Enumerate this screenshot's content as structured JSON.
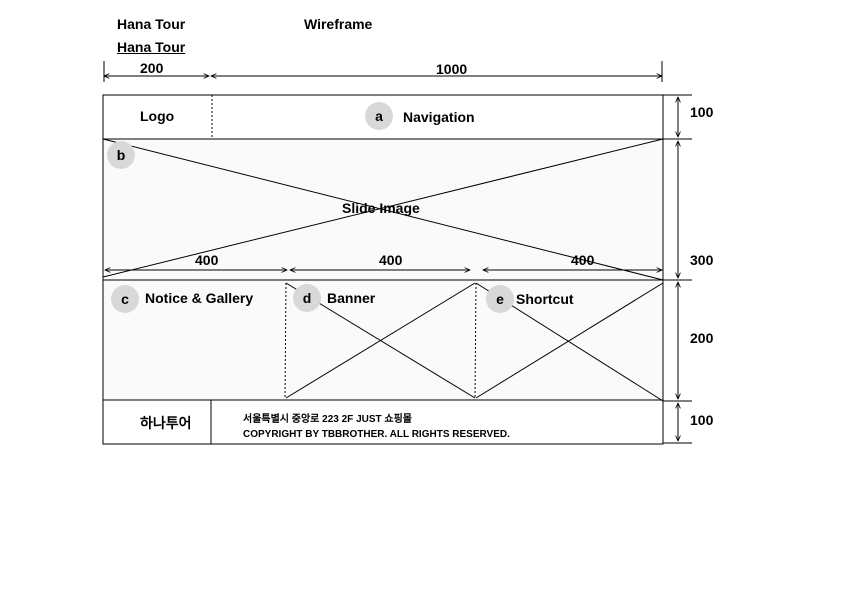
{
  "header": {
    "title": "Hana Tour",
    "subtitle": "Hana Tour",
    "doc_type": "Wireframe"
  },
  "dimensions": {
    "width_logo": "200",
    "width_content": "1000",
    "width_col_1": "400",
    "width_col_2": "400",
    "width_col_3": "400",
    "height_header": "100",
    "height_slide": "300",
    "height_content": "200",
    "height_footer": "100"
  },
  "sections": {
    "logo": "Logo",
    "navigation": {
      "marker": "a",
      "label": "Navigation"
    },
    "slide": {
      "marker": "b",
      "label": "Slide Image"
    },
    "notice": {
      "marker": "c",
      "label": "Notice & Gallery"
    },
    "banner": {
      "marker": "d",
      "label": "Banner"
    },
    "shortcut": {
      "marker": "e",
      "label": "Shortcut"
    }
  },
  "footer": {
    "logo_text": "하나투어",
    "address": "서울특별시 중앙로 223 2F JUST 쇼핑몰",
    "copyright": "COPYRIGHT BY TBBROTHER. ALL RIGHTS RESERVED."
  },
  "colors": {
    "line": "#000000",
    "badge": "#d8d8d8",
    "background": "#ffffff"
  }
}
